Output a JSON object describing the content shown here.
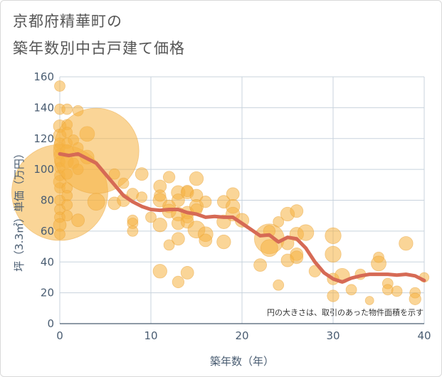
{
  "title_line1": "京都府精華町の",
  "title_line2": "築年数別中古戸建て価格",
  "chart_data": {
    "type": "scatter",
    "xlabel": "築年数（年）",
    "ylabel": "坪（3.3㎡）単価（万円）",
    "xlim": [
      0,
      40
    ],
    "ylim": [
      0,
      160
    ],
    "xticks": [
      0,
      10,
      20,
      30,
      40
    ],
    "yticks": [
      0,
      20,
      40,
      60,
      80,
      100,
      120,
      140,
      160
    ],
    "grid": true,
    "note": "円の大きさは、取引のあった物件面積を示す",
    "colors": {
      "bubble": "#f5b342",
      "trend": "#d66a55",
      "grid": "#c8d3dd",
      "axis": "#4a5d72"
    },
    "bubbles": [
      {
        "x": 0,
        "y": 154,
        "s": 1
      },
      {
        "x": 0,
        "y": 139,
        "s": 1
      },
      {
        "x": 0,
        "y": 128,
        "s": 1.2
      },
      {
        "x": 0,
        "y": 122,
        "s": 1.2
      },
      {
        "x": 0,
        "y": 117,
        "s": 1
      },
      {
        "x": 0,
        "y": 114,
        "s": 1
      },
      {
        "x": 0,
        "y": 110,
        "s": 1
      },
      {
        "x": 0,
        "y": 105,
        "s": 1
      },
      {
        "x": 0,
        "y": 101,
        "s": 1
      },
      {
        "x": 0,
        "y": 96,
        "s": 1
      },
      {
        "x": 0,
        "y": 92,
        "s": 1.2
      },
      {
        "x": 0,
        "y": 88,
        "s": 1
      },
      {
        "x": 0,
        "y": 85,
        "s": 9
      },
      {
        "x": 0,
        "y": 80,
        "s": 1
      },
      {
        "x": 0,
        "y": 74,
        "s": 1
      },
      {
        "x": 0,
        "y": 69,
        "s": 1
      },
      {
        "x": 0,
        "y": 64,
        "s": 1.2
      },
      {
        "x": 0,
        "y": 58,
        "s": 1
      },
      {
        "x": 0.8,
        "y": 139,
        "s": 1
      },
      {
        "x": 0.8,
        "y": 129,
        "s": 1
      },
      {
        "x": 0.8,
        "y": 124,
        "s": 1
      },
      {
        "x": 0.8,
        "y": 117,
        "s": 1
      },
      {
        "x": 0.8,
        "y": 112,
        "s": 1.2
      },
      {
        "x": 0.8,
        "y": 105,
        "s": 1.2
      },
      {
        "x": 0.8,
        "y": 97,
        "s": 1
      },
      {
        "x": 0.8,
        "y": 88,
        "s": 1
      },
      {
        "x": 0.8,
        "y": 83,
        "s": 1
      },
      {
        "x": 0.8,
        "y": 77,
        "s": 1
      },
      {
        "x": 0.8,
        "y": 70,
        "s": 1
      },
      {
        "x": 1.5,
        "y": 119,
        "s": 1
      },
      {
        "x": 1.5,
        "y": 104,
        "s": 1
      },
      {
        "x": 2,
        "y": 138,
        "s": 1
      },
      {
        "x": 2,
        "y": 114,
        "s": 1
      },
      {
        "x": 2,
        "y": 100,
        "s": 1
      },
      {
        "x": 2,
        "y": 67,
        "s": 1.2
      },
      {
        "x": 3,
        "y": 123,
        "s": 1.4
      },
      {
        "x": 3,
        "y": 108,
        "s": 1.3
      },
      {
        "x": 4,
        "y": 112,
        "s": 8
      },
      {
        "x": 4,
        "y": 79,
        "s": 1.6
      },
      {
        "x": 6,
        "y": 97,
        "s": 1
      },
      {
        "x": 6,
        "y": 78,
        "s": 1.2
      },
      {
        "x": 7,
        "y": 91,
        "s": 1
      },
      {
        "x": 7,
        "y": 80,
        "s": 1.2
      },
      {
        "x": 8,
        "y": 84,
        "s": 1.1
      },
      {
        "x": 8,
        "y": 67,
        "s": 1
      },
      {
        "x": 8,
        "y": 65,
        "s": 1
      },
      {
        "x": 8,
        "y": 60,
        "s": 1
      },
      {
        "x": 9,
        "y": 97,
        "s": 1.2
      },
      {
        "x": 9,
        "y": 82,
        "s": 1
      },
      {
        "x": 10,
        "y": 69,
        "s": 1
      },
      {
        "x": 11,
        "y": 89,
        "s": 1.2
      },
      {
        "x": 11,
        "y": 83,
        "s": 1.1
      },
      {
        "x": 11,
        "y": 80,
        "s": 1.3
      },
      {
        "x": 11,
        "y": 64,
        "s": 1.3
      },
      {
        "x": 11,
        "y": 34,
        "s": 1.3
      },
      {
        "x": 12,
        "y": 95,
        "s": 1.1
      },
      {
        "x": 12,
        "y": 76,
        "s": 1.2
      },
      {
        "x": 12,
        "y": 73,
        "s": 1.3
      },
      {
        "x": 12,
        "y": 51,
        "s": 1
      },
      {
        "x": 13,
        "y": 85,
        "s": 1.3
      },
      {
        "x": 13,
        "y": 80,
        "s": 1.2
      },
      {
        "x": 13,
        "y": 71,
        "s": 1.3
      },
      {
        "x": 13,
        "y": 65,
        "s": 1.2
      },
      {
        "x": 13,
        "y": 55,
        "s": 1.2
      },
      {
        "x": 13,
        "y": 27,
        "s": 1.1
      },
      {
        "x": 14,
        "y": 86,
        "s": 1.1
      },
      {
        "x": 14,
        "y": 85,
        "s": 1.2
      },
      {
        "x": 14,
        "y": 72,
        "s": 1.2
      },
      {
        "x": 14,
        "y": 69,
        "s": 1.1
      },
      {
        "x": 14,
        "y": 66,
        "s": 1.2
      },
      {
        "x": 14,
        "y": 33,
        "s": 1.2
      },
      {
        "x": 15,
        "y": 94,
        "s": 1.3
      },
      {
        "x": 15,
        "y": 83,
        "s": 1.2
      },
      {
        "x": 15,
        "y": 76,
        "s": 1.3
      },
      {
        "x": 15,
        "y": 74,
        "s": 1.1
      },
      {
        "x": 15,
        "y": 61,
        "s": 1.6
      },
      {
        "x": 16,
        "y": 79,
        "s": 1.1
      },
      {
        "x": 16,
        "y": 58,
        "s": 1.4
      },
      {
        "x": 16,
        "y": 54,
        "s": 1.2
      },
      {
        "x": 18,
        "y": 79,
        "s": 1.2
      },
      {
        "x": 18,
        "y": 66,
        "s": 1.3
      },
      {
        "x": 18,
        "y": 53,
        "s": 1.3
      },
      {
        "x": 19,
        "y": 84,
        "s": 1.2
      },
      {
        "x": 19,
        "y": 76,
        "s": 1.3
      },
      {
        "x": 19,
        "y": 71,
        "s": 1.3
      },
      {
        "x": 20,
        "y": 67,
        "s": 1.3
      },
      {
        "x": 22,
        "y": 38,
        "s": 1.2
      },
      {
        "x": 23,
        "y": 55,
        "s": 2.8
      },
      {
        "x": 23,
        "y": 49,
        "s": 1.6
      },
      {
        "x": 23,
        "y": 60,
        "s": 1.1
      },
      {
        "x": 24,
        "y": 66,
        "s": 1
      },
      {
        "x": 24,
        "y": 25,
        "s": 1
      },
      {
        "x": 25,
        "y": 71,
        "s": 1.3
      },
      {
        "x": 25,
        "y": 52,
        "s": 1.2
      },
      {
        "x": 25,
        "y": 41,
        "s": 1.2
      },
      {
        "x": 26,
        "y": 73,
        "s": 1.2
      },
      {
        "x": 26,
        "y": 58,
        "s": 1.3
      },
      {
        "x": 26,
        "y": 45,
        "s": 1.2
      },
      {
        "x": 26,
        "y": 43,
        "s": 1.2
      },
      {
        "x": 27,
        "y": 59,
        "s": 1.5
      },
      {
        "x": 28,
        "y": 34,
        "s": 1.1
      },
      {
        "x": 30,
        "y": 57,
        "s": 1.5
      },
      {
        "x": 30,
        "y": 45,
        "s": 1.5
      },
      {
        "x": 30,
        "y": 29,
        "s": 1.1
      },
      {
        "x": 30,
        "y": 18,
        "s": 1.1
      },
      {
        "x": 31,
        "y": 31,
        "s": 1.4
      },
      {
        "x": 32,
        "y": 22,
        "s": 1
      },
      {
        "x": 33,
        "y": 32,
        "s": 1
      },
      {
        "x": 34,
        "y": 15,
        "s": 0.8
      },
      {
        "x": 35,
        "y": 43,
        "s": 1
      },
      {
        "x": 35,
        "y": 39,
        "s": 1.4
      },
      {
        "x": 36,
        "y": 26,
        "s": 1
      },
      {
        "x": 36,
        "y": 22,
        "s": 1
      },
      {
        "x": 37,
        "y": 21,
        "s": 1
      },
      {
        "x": 38,
        "y": 52,
        "s": 1.3
      },
      {
        "x": 39,
        "y": 20,
        "s": 1
      },
      {
        "x": 39,
        "y": 16,
        "s": 1.1
      },
      {
        "x": 40,
        "y": 30,
        "s": 0.9
      }
    ],
    "trend": [
      {
        "x": 0,
        "y": 110
      },
      {
        "x": 1,
        "y": 109
      },
      {
        "x": 2,
        "y": 110
      },
      {
        "x": 3,
        "y": 107
      },
      {
        "x": 4,
        "y": 104
      },
      {
        "x": 5,
        "y": 97
      },
      {
        "x": 6,
        "y": 90
      },
      {
        "x": 7,
        "y": 83
      },
      {
        "x": 8,
        "y": 79
      },
      {
        "x": 9,
        "y": 76
      },
      {
        "x": 10,
        "y": 74
      },
      {
        "x": 11,
        "y": 73.5
      },
      {
        "x": 12,
        "y": 74
      },
      {
        "x": 13,
        "y": 74
      },
      {
        "x": 14,
        "y": 72
      },
      {
        "x": 15,
        "y": 71
      },
      {
        "x": 16,
        "y": 69
      },
      {
        "x": 17,
        "y": 69.5
      },
      {
        "x": 18,
        "y": 69
      },
      {
        "x": 19,
        "y": 69
      },
      {
        "x": 20,
        "y": 65
      },
      {
        "x": 21,
        "y": 61
      },
      {
        "x": 22,
        "y": 57
      },
      {
        "x": 23,
        "y": 57.5
      },
      {
        "x": 24,
        "y": 53
      },
      {
        "x": 25,
        "y": 56
      },
      {
        "x": 26,
        "y": 55
      },
      {
        "x": 27,
        "y": 49
      },
      {
        "x": 28,
        "y": 40
      },
      {
        "x": 29,
        "y": 33
      },
      {
        "x": 30,
        "y": 29
      },
      {
        "x": 31,
        "y": 27
      },
      {
        "x": 32,
        "y": 29.5
      },
      {
        "x": 33,
        "y": 31
      },
      {
        "x": 34,
        "y": 32
      },
      {
        "x": 35,
        "y": 32
      },
      {
        "x": 36,
        "y": 32
      },
      {
        "x": 37,
        "y": 31.5
      },
      {
        "x": 38,
        "y": 32
      },
      {
        "x": 39,
        "y": 31
      },
      {
        "x": 40,
        "y": 28
      }
    ]
  }
}
